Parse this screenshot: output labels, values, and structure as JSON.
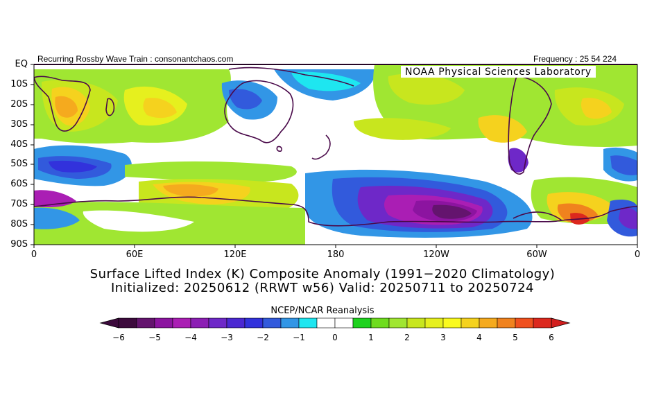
{
  "header": {
    "left_text": "Recurring Rossby Wave Train : consonantchaos.com",
    "right_text": "Frequency : 25 54 224"
  },
  "map": {
    "banner": "NOAA Physical Sciences Laboratory",
    "lat_labels": [
      "EQ",
      "10S",
      "20S",
      "30S",
      "40S",
      "50S",
      "60S",
      "70S",
      "80S",
      "90S"
    ],
    "lon_labels": [
      "0",
      "60E",
      "120E",
      "180",
      "120W",
      "60W",
      "0"
    ]
  },
  "captions": {
    "line1": "Surface Lifted Index (K) Composite Anomaly (1991−2020 Climatology)",
    "line2": "Initialized: 20250612 (RRWT w56) Valid: 20250711 to 20250724"
  },
  "colorbar": {
    "title": "NCEP/NCAR Reanalysis",
    "tick_labels": [
      "−6",
      "−5",
      "−4",
      "−3",
      "−2",
      "−1",
      "0",
      "1",
      "2",
      "3",
      "4",
      "5",
      "6"
    ],
    "under_color": "#3c0a3c",
    "over_color": "#d21e1e",
    "bins": [
      {
        "from": -6.0,
        "to": -5.5,
        "color": "#3c0a3c"
      },
      {
        "from": -5.5,
        "to": -5.0,
        "color": "#64146e"
      },
      {
        "from": -5.0,
        "to": -4.5,
        "color": "#8c14a0"
      },
      {
        "from": -4.5,
        "to": -4.0,
        "color": "#aa1eb4"
      },
      {
        "from": -4.0,
        "to": -3.5,
        "color": "#8c1eb4"
      },
      {
        "from": -3.5,
        "to": -3.0,
        "color": "#6e28c8"
      },
      {
        "from": -3.0,
        "to": -2.5,
        "color": "#4b28d2"
      },
      {
        "from": -2.5,
        "to": -2.0,
        "color": "#3232dc"
      },
      {
        "from": -2.0,
        "to": -1.5,
        "color": "#325adc"
      },
      {
        "from": -1.5,
        "to": -1.0,
        "color": "#3296e6"
      },
      {
        "from": -1.0,
        "to": -0.5,
        "color": "#1ee6f0"
      },
      {
        "from": -0.5,
        "to": 0.0,
        "color": "#ffffff"
      },
      {
        "from": 0.0,
        "to": 0.5,
        "color": "#ffffff"
      },
      {
        "from": 0.5,
        "to": 1.0,
        "color": "#1ed21e"
      },
      {
        "from": 1.0,
        "to": 1.5,
        "color": "#6edc1e"
      },
      {
        "from": 1.5,
        "to": 2.0,
        "color": "#a0e632"
      },
      {
        "from": 2.0,
        "to": 2.5,
        "color": "#c8e61e"
      },
      {
        "from": 2.5,
        "to": 3.0,
        "color": "#e6f01e"
      },
      {
        "from": 3.0,
        "to": 3.5,
        "color": "#fafa1e"
      },
      {
        "from": 3.5,
        "to": 4.0,
        "color": "#f5d21e"
      },
      {
        "from": 4.0,
        "to": 4.5,
        "color": "#f5aa1e"
      },
      {
        "from": 4.5,
        "to": 5.0,
        "color": "#f0821e"
      },
      {
        "from": 5.0,
        "to": 5.5,
        "color": "#f0501e"
      },
      {
        "from": 5.5,
        "to": 6.0,
        "color": "#dc281e"
      }
    ]
  }
}
